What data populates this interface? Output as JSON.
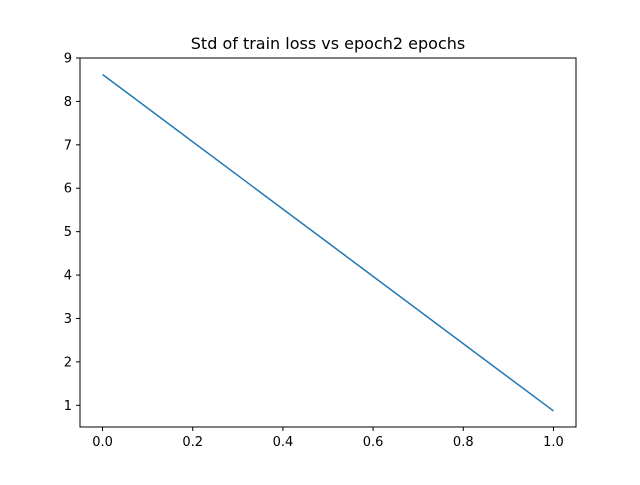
{
  "chart_data": {
    "type": "line",
    "title": "Std of train loss vs epoch2 epochs",
    "xlabel": "",
    "ylabel": "",
    "x": [
      0.0,
      1.0
    ],
    "series": [
      {
        "values": [
          8.62,
          0.87
        ],
        "color": "#1f77b4"
      }
    ],
    "xlim": [
      -0.05,
      1.05
    ],
    "ylim": [
      0.5,
      9.0
    ],
    "xticks": [
      0.0,
      0.2,
      0.4,
      0.6,
      0.8,
      1.0
    ],
    "xtick_labels": [
      "0.0",
      "0.2",
      "0.4",
      "0.6",
      "0.8",
      "1.0"
    ],
    "yticks": [
      1,
      2,
      3,
      4,
      5,
      6,
      7,
      8,
      9
    ],
    "ytick_labels": [
      "1",
      "2",
      "3",
      "4",
      "5",
      "6",
      "7",
      "8",
      "9"
    ],
    "grid": false,
    "legend": "none"
  }
}
